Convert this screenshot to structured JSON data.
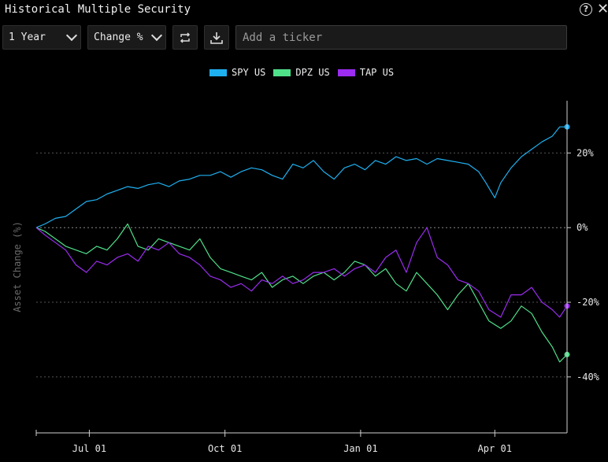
{
  "window": {
    "title": "Historical Multiple Security"
  },
  "toolbar": {
    "period": "1 Year",
    "mode": "Change %",
    "ticker_placeholder": "Add a ticker",
    "help_glyph": "?",
    "close_glyph": "✕"
  },
  "colors": {
    "SPY US": "#1fb0f0",
    "DPZ US": "#4fe08a",
    "TAP US": "#9b2cf0",
    "grid": "#555555",
    "axis": "#cfcfcf"
  },
  "chart_data": {
    "type": "line",
    "ylabel": "Asset Change (%)",
    "ylim": [
      -55,
      34
    ],
    "yticks": [
      20,
      0,
      -20,
      -40
    ],
    "ytick_labels": [
      "20%",
      "0%",
      "-20%",
      "-40%"
    ],
    "xlim": [
      "2023-05-26",
      "2024-05-20"
    ],
    "xticks": [
      "2023-07-01",
      "2023-10-01",
      "2024-01-01",
      "2024-04-01"
    ],
    "xtick_labels": [
      "Jul 01",
      "Oct 01",
      "Jan 01",
      "Apr 01"
    ],
    "grid": "horizontal dotted",
    "legend": "top-center",
    "series": [
      {
        "name": "SPY US",
        "color": "#1fb0f0",
        "x": [
          "2023-05-26",
          "2023-06-01",
          "2023-06-08",
          "2023-06-15",
          "2023-06-22",
          "2023-06-29",
          "2023-07-06",
          "2023-07-13",
          "2023-07-20",
          "2023-07-27",
          "2023-08-03",
          "2023-08-10",
          "2023-08-17",
          "2023-08-24",
          "2023-08-31",
          "2023-09-07",
          "2023-09-14",
          "2023-09-21",
          "2023-09-28",
          "2023-10-05",
          "2023-10-12",
          "2023-10-19",
          "2023-10-26",
          "2023-11-02",
          "2023-11-09",
          "2023-11-16",
          "2023-11-23",
          "2023-11-30",
          "2023-12-07",
          "2023-12-14",
          "2023-12-21",
          "2023-12-28",
          "2024-01-04",
          "2024-01-11",
          "2024-01-18",
          "2024-01-25",
          "2024-02-01",
          "2024-02-08",
          "2024-02-15",
          "2024-02-22",
          "2024-02-29",
          "2024-03-07",
          "2024-03-14",
          "2024-03-21",
          "2024-03-26",
          "2024-03-29",
          "2024-04-01",
          "2024-04-05",
          "2024-04-12",
          "2024-04-19",
          "2024-04-26",
          "2024-05-03",
          "2024-05-10",
          "2024-05-15",
          "2024-05-20"
        ],
        "y": [
          0,
          1,
          2.5,
          3,
          5,
          7,
          7.5,
          9,
          10,
          11,
          10.5,
          11.5,
          12,
          11,
          12.5,
          13,
          14,
          14,
          15,
          13.5,
          15,
          16,
          15.5,
          14,
          13,
          17,
          16,
          18,
          15,
          13,
          16,
          17,
          15.5,
          18,
          17,
          19,
          18,
          18.5,
          17,
          18.5,
          18,
          17.5,
          17,
          15,
          12,
          10,
          8,
          12,
          16,
          19,
          21,
          23,
          24.5,
          27,
          27
        ]
      },
      {
        "name": "DPZ US",
        "color": "#4fe08a",
        "x": [
          "2023-05-26",
          "2023-06-01",
          "2023-06-08",
          "2023-06-15",
          "2023-06-22",
          "2023-06-29",
          "2023-07-06",
          "2023-07-13",
          "2023-07-20",
          "2023-07-27",
          "2023-08-03",
          "2023-08-10",
          "2023-08-17",
          "2023-08-24",
          "2023-08-31",
          "2023-09-07",
          "2023-09-14",
          "2023-09-21",
          "2023-09-28",
          "2023-10-05",
          "2023-10-12",
          "2023-10-19",
          "2023-10-26",
          "2023-11-02",
          "2023-11-09",
          "2023-11-16",
          "2023-11-23",
          "2023-11-30",
          "2023-12-07",
          "2023-12-14",
          "2023-12-21",
          "2023-12-28",
          "2024-01-04",
          "2024-01-11",
          "2024-01-18",
          "2024-01-25",
          "2024-02-01",
          "2024-02-08",
          "2024-02-15",
          "2024-02-22",
          "2024-02-29",
          "2024-03-07",
          "2024-03-14",
          "2024-03-21",
          "2024-03-28",
          "2024-04-05",
          "2024-04-12",
          "2024-04-19",
          "2024-04-26",
          "2024-05-03",
          "2024-05-10",
          "2024-05-15",
          "2024-05-20"
        ],
        "y": [
          0,
          -1,
          -3,
          -5,
          -6,
          -7,
          -5,
          -6,
          -3,
          1,
          -5,
          -6,
          -3,
          -4,
          -5,
          -6,
          -3,
          -8,
          -11,
          -12,
          -13,
          -14,
          -12,
          -16,
          -14,
          -13,
          -15,
          -13,
          -12,
          -14,
          -12,
          -9,
          -10,
          -13,
          -11,
          -15,
          -17,
          -12,
          -15,
          -18,
          -22,
          -18,
          -15,
          -20,
          -25,
          -27,
          -25,
          -21,
          -23,
          -28,
          -32,
          -36,
          -34
        ]
      },
      {
        "name": "TAP US",
        "color": "#9b2cf0",
        "x": [
          "2023-05-26",
          "2023-06-01",
          "2023-06-08",
          "2023-06-15",
          "2023-06-22",
          "2023-06-29",
          "2023-07-06",
          "2023-07-13",
          "2023-07-20",
          "2023-07-27",
          "2023-08-03",
          "2023-08-10",
          "2023-08-17",
          "2023-08-24",
          "2023-08-31",
          "2023-09-07",
          "2023-09-14",
          "2023-09-21",
          "2023-09-28",
          "2023-10-05",
          "2023-10-12",
          "2023-10-19",
          "2023-10-26",
          "2023-11-02",
          "2023-11-09",
          "2023-11-16",
          "2023-11-23",
          "2023-11-30",
          "2023-12-07",
          "2023-12-14",
          "2023-12-21",
          "2023-12-28",
          "2024-01-04",
          "2024-01-11",
          "2024-01-18",
          "2024-01-25",
          "2024-02-01",
          "2024-02-08",
          "2024-02-15",
          "2024-02-22",
          "2024-02-29",
          "2024-03-07",
          "2024-03-14",
          "2024-03-21",
          "2024-03-28",
          "2024-04-05",
          "2024-04-12",
          "2024-04-19",
          "2024-04-26",
          "2024-05-03",
          "2024-05-10",
          "2024-05-15",
          "2024-05-20"
        ],
        "y": [
          0,
          -2,
          -4,
          -6,
          -10,
          -12,
          -9,
          -10,
          -8,
          -7,
          -9,
          -5,
          -6,
          -4,
          -7,
          -8,
          -10,
          -13,
          -14,
          -16,
          -15,
          -17,
          -14,
          -15,
          -13,
          -15,
          -14,
          -12,
          -12,
          -11,
          -13,
          -11,
          -10,
          -12,
          -8,
          -6,
          -12,
          -4,
          0,
          -8,
          -10,
          -14,
          -15,
          -17,
          -22,
          -24,
          -18,
          -18,
          -16,
          -20,
          -22,
          -24,
          -21
        ]
      }
    ]
  }
}
